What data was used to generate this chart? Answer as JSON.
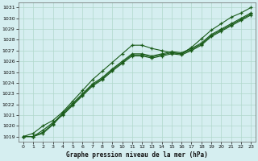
{
  "title": "Graphe pression niveau de la mer (hPa)",
  "background_color": "#d5eef0",
  "grid_color": "#b0d8cc",
  "line_color": "#1a5c1a",
  "xlim": [
    -0.5,
    23.5
  ],
  "ylim": [
    1018.5,
    1031.5
  ],
  "yticks": [
    1019,
    1020,
    1021,
    1022,
    1023,
    1024,
    1025,
    1026,
    1027,
    1028,
    1029,
    1030,
    1031
  ],
  "xticks": [
    0,
    1,
    2,
    3,
    4,
    5,
    6,
    7,
    8,
    9,
    10,
    11,
    12,
    13,
    14,
    15,
    16,
    17,
    18,
    19,
    20,
    21,
    22,
    23
  ],
  "series": [
    [
      1019.0,
      1019.3,
      1020.0,
      1020.5,
      1021.3,
      1022.3,
      1023.3,
      1024.3,
      1025.1,
      1025.9,
      1026.7,
      1027.5,
      1027.5,
      1027.2,
      1027.0,
      1026.8,
      1026.7,
      1027.3,
      1028.1,
      1028.9,
      1029.5,
      1030.1,
      1030.5,
      1031.0
    ],
    [
      1019.0,
      1019.0,
      1019.6,
      1020.3,
      1021.0,
      1021.9,
      1022.8,
      1023.7,
      1024.3,
      1025.1,
      1025.8,
      1026.5,
      1026.5,
      1026.3,
      1026.5,
      1026.7,
      1026.6,
      1027.0,
      1027.5,
      1028.3,
      1028.8,
      1029.3,
      1029.8,
      1030.3
    ],
    [
      1019.0,
      1019.0,
      1019.4,
      1020.2,
      1021.2,
      1022.1,
      1023.0,
      1023.9,
      1024.5,
      1025.3,
      1026.0,
      1026.7,
      1026.7,
      1026.5,
      1026.7,
      1026.9,
      1026.8,
      1027.2,
      1027.7,
      1028.5,
      1029.0,
      1029.5,
      1030.0,
      1030.5
    ],
    [
      1019.0,
      1019.0,
      1019.3,
      1020.1,
      1021.1,
      1022.0,
      1022.9,
      1023.8,
      1024.4,
      1025.2,
      1025.9,
      1026.6,
      1026.6,
      1026.4,
      1026.6,
      1026.8,
      1026.7,
      1027.1,
      1027.6,
      1028.4,
      1028.9,
      1029.4,
      1029.9,
      1030.4
    ]
  ]
}
